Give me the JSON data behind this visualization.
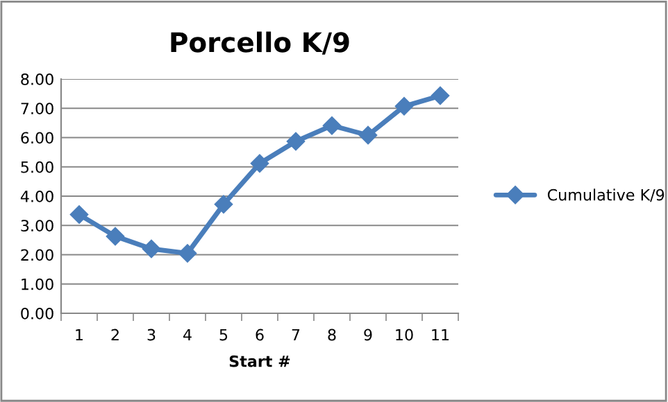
{
  "chart_data": {
    "type": "line",
    "title": "Porcello K/9",
    "xlabel": "Start #",
    "categories": [
      "1",
      "2",
      "3",
      "4",
      "5",
      "6",
      "7",
      "8",
      "9",
      "10",
      "11"
    ],
    "series": [
      {
        "name": "Cumulative K/9",
        "color": "#4a7ebb",
        "values": [
          3.37,
          2.63,
          2.2,
          2.05,
          3.72,
          5.12,
          5.87,
          6.41,
          6.08,
          7.07,
          7.43
        ]
      }
    ],
    "ylim": [
      0,
      8
    ],
    "yticks": [
      {
        "value": 0,
        "label": "0.00"
      },
      {
        "value": 1,
        "label": "1.00"
      },
      {
        "value": 2,
        "label": "2.00"
      },
      {
        "value": 3,
        "label": "3.00"
      },
      {
        "value": 4,
        "label": "4.00"
      },
      {
        "value": 5,
        "label": "5.00"
      },
      {
        "value": 6,
        "label": "6.00"
      },
      {
        "value": 7,
        "label": "7.00"
      },
      {
        "value": 8,
        "label": "8.00"
      }
    ],
    "grid": "y",
    "legend": "right",
    "marker": "diamond",
    "line_style": "solid"
  }
}
